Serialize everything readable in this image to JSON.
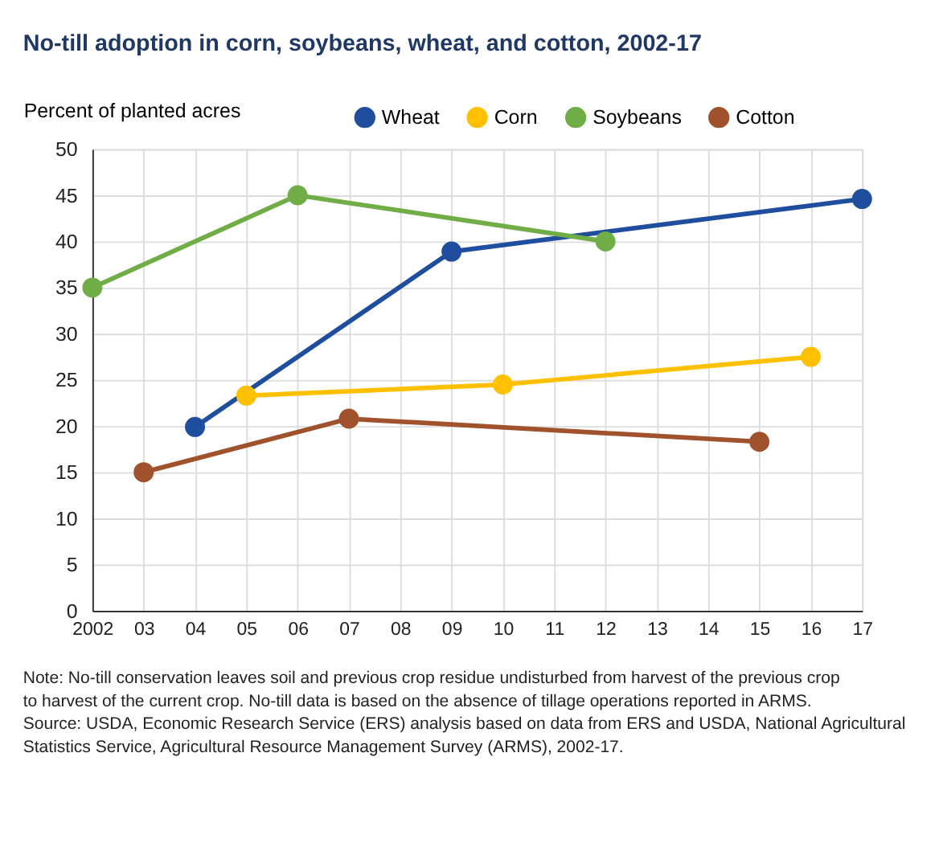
{
  "chart_data": {
    "type": "line",
    "title": "No-till adoption in corn, soybeans, wheat, and cotton, 2002-17",
    "ylabel": "Percent of planted acres",
    "series": [
      {
        "name": "Wheat",
        "color": "#1f4e9e",
        "x": [
          2004,
          2009,
          2017
        ],
        "values": [
          19.9,
          38.9,
          44.6
        ]
      },
      {
        "name": "Corn",
        "color": "#ffc000",
        "x": [
          2005,
          2010,
          2016
        ],
        "values": [
          23.3,
          24.5,
          27.5
        ]
      },
      {
        "name": "Soybeans",
        "color": "#70ad47",
        "x": [
          2002,
          2006,
          2012
        ],
        "values": [
          35,
          45,
          40
        ]
      },
      {
        "name": "Cotton",
        "color": "#a0522d",
        "x": [
          2003,
          2007,
          2015
        ],
        "values": [
          15,
          20.8,
          18.3
        ]
      }
    ],
    "xlim": [
      2002,
      2017
    ],
    "xticks": [
      2002,
      {
        "value": 2003,
        "label": "03"
      },
      {
        "value": 2004,
        "label": "04"
      },
      {
        "value": 2005,
        "label": "05"
      },
      {
        "value": 2006,
        "label": "06"
      },
      {
        "value": 2007,
        "label": "07"
      },
      {
        "value": 2008,
        "label": "08"
      },
      {
        "value": 2009,
        "label": "09"
      },
      {
        "value": 2010,
        "label": "10"
      },
      {
        "value": 2011,
        "label": "11"
      },
      {
        "value": 2012,
        "label": "12"
      },
      {
        "value": 2013,
        "label": "13"
      },
      {
        "value": 2014,
        "label": "14"
      },
      {
        "value": 2015,
        "label": "15"
      },
      {
        "value": 2016,
        "label": "16"
      },
      {
        "value": 2017,
        "label": "17"
      }
    ],
    "ylim": [
      0,
      50
    ],
    "yticks": [
      0,
      5,
      10,
      15,
      20,
      25,
      30,
      35,
      40,
      45,
      50
    ],
    "grid": true,
    "legend": "top right",
    "marker": "circle",
    "line_style": "solid",
    "annotations": [
      "Note: No-till conservation leaves soil and previous crop residue undisturbed from harvest of the previous crop to harvest of the current crop. No-till data is based on the absence of tillage operations reported in ARMS.",
      "Source: USDA, Economic Research Service (ERS) analysis based on data from ERS and USDA, National Agricultural Statistics Service, Agricultural Resource Management Survey (ARMS), 2002-17."
    ]
  }
}
